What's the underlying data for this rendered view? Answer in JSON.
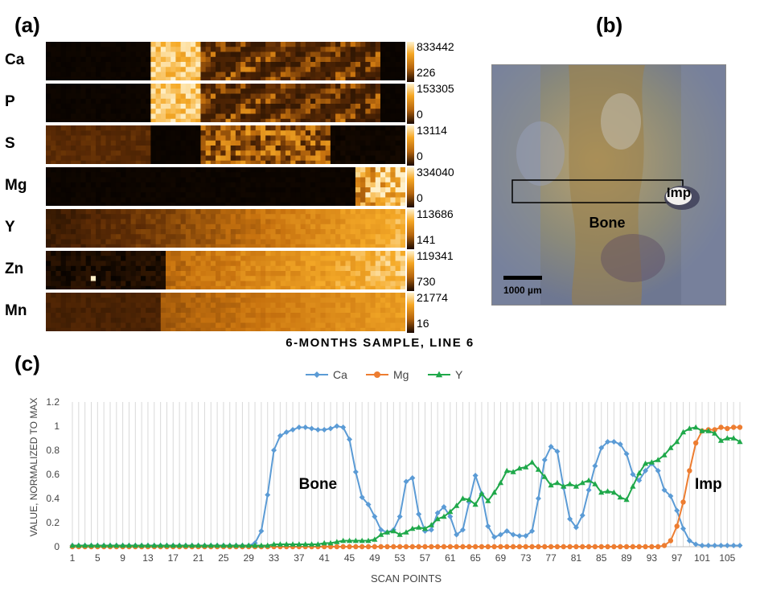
{
  "panels": {
    "a": "(a)",
    "b": "(b)",
    "c": "(c)"
  },
  "maps": [
    {
      "element": "Ca",
      "max": "833442",
      "min": "226",
      "profile": "ca"
    },
    {
      "element": "P",
      "max": "153305",
      "min": "0",
      "profile": "ca"
    },
    {
      "element": "S",
      "max": "13114",
      "min": "0",
      "profile": "s"
    },
    {
      "element": "Mg",
      "max": "334040",
      "min": "0",
      "profile": "mg"
    },
    {
      "element": "Y",
      "max": "113686",
      "min": "141",
      "profile": "y"
    },
    {
      "element": "Zn",
      "max": "119341",
      "min": "730",
      "profile": "zn"
    },
    {
      "element": "Mn",
      "max": "21774",
      "min": "16",
      "profile": "mn"
    }
  ],
  "photo": {
    "bone_label": "Bone",
    "imp_label": "Imp",
    "scalebar_label": "1000 µm"
  },
  "subtitle": "6-MONTHS SAMPLE, LINE 6",
  "chart_data": {
    "type": "line",
    "title": "",
    "xlabel": "SCAN POINTS",
    "ylabel": "VALUE, NORMALIZED TO MAX",
    "ylim": [
      0,
      1.2
    ],
    "yticks": [
      "0",
      "0.2",
      "0.4",
      "0.6",
      "0.8",
      "1",
      "1.2"
    ],
    "xticks": [
      "1",
      "5",
      "9",
      "13",
      "17",
      "21",
      "25",
      "29",
      "33",
      "37",
      "41",
      "45",
      "49",
      "53",
      "57",
      "61",
      "65",
      "69",
      "73",
      "77",
      "81",
      "85",
      "89",
      "93",
      "97",
      "101",
      "105"
    ],
    "legend_position": "top",
    "grid": "vertical",
    "annotations": [
      {
        "text": "Bone",
        "x": 40,
        "y": 0.48
      },
      {
        "text": "Imp",
        "x": 102,
        "y": 0.48
      }
    ],
    "x": [
      1,
      2,
      3,
      4,
      5,
      6,
      7,
      8,
      9,
      10,
      11,
      12,
      13,
      14,
      15,
      16,
      17,
      18,
      19,
      20,
      21,
      22,
      23,
      24,
      25,
      26,
      27,
      28,
      29,
      30,
      31,
      32,
      33,
      34,
      35,
      36,
      37,
      38,
      39,
      40,
      41,
      42,
      43,
      44,
      45,
      46,
      47,
      48,
      49,
      50,
      51,
      52,
      53,
      54,
      55,
      56,
      57,
      58,
      59,
      60,
      61,
      62,
      63,
      64,
      65,
      66,
      67,
      68,
      69,
      70,
      71,
      72,
      73,
      74,
      75,
      76,
      77,
      78,
      79,
      80,
      81,
      82,
      83,
      84,
      85,
      86,
      87,
      88,
      89,
      90,
      91,
      92,
      93,
      94,
      95,
      96,
      97,
      98,
      99,
      100,
      101,
      102,
      103,
      104,
      105,
      106,
      107
    ],
    "series": [
      {
        "name": "Ca",
        "color": "#5b9bd5",
        "marker": "diamond",
        "values": [
          0.01,
          0.01,
          0.01,
          0.01,
          0.01,
          0.01,
          0.01,
          0.01,
          0.01,
          0.01,
          0.01,
          0.01,
          0.01,
          0.01,
          0.01,
          0.01,
          0.01,
          0.01,
          0.01,
          0.01,
          0.01,
          0.01,
          0.01,
          0.01,
          0.01,
          0.01,
          0.01,
          0.01,
          0.01,
          0.03,
          0.13,
          0.43,
          0.8,
          0.92,
          0.95,
          0.97,
          0.99,
          0.99,
          0.98,
          0.97,
          0.97,
          0.98,
          1.0,
          0.99,
          0.89,
          0.62,
          0.41,
          0.35,
          0.25,
          0.14,
          0.12,
          0.14,
          0.25,
          0.54,
          0.57,
          0.27,
          0.13,
          0.14,
          0.28,
          0.33,
          0.25,
          0.1,
          0.14,
          0.37,
          0.59,
          0.44,
          0.17,
          0.08,
          0.1,
          0.13,
          0.1,
          0.09,
          0.09,
          0.13,
          0.4,
          0.72,
          0.83,
          0.79,
          0.49,
          0.23,
          0.16,
          0.26,
          0.47,
          0.67,
          0.82,
          0.87,
          0.87,
          0.85,
          0.77,
          0.6,
          0.55,
          0.63,
          0.69,
          0.63,
          0.47,
          0.42,
          0.3,
          0.15,
          0.05,
          0.02,
          0.01,
          0.01,
          0.01,
          0.01,
          0.01,
          0.01,
          0.01
        ]
      },
      {
        "name": "Mg",
        "color": "#ed7d31",
        "marker": "circle",
        "values": [
          0,
          0,
          0,
          0,
          0,
          0,
          0,
          0,
          0,
          0,
          0,
          0,
          0,
          0,
          0,
          0,
          0,
          0,
          0,
          0,
          0,
          0,
          0,
          0,
          0,
          0,
          0,
          0,
          0,
          0,
          0,
          0,
          0,
          0,
          0,
          0,
          0,
          0,
          0,
          0,
          0,
          0,
          0,
          0,
          0,
          0,
          0,
          0,
          0,
          0,
          0,
          0,
          0,
          0,
          0,
          0,
          0,
          0,
          0,
          0,
          0,
          0,
          0,
          0,
          0,
          0,
          0,
          0,
          0,
          0,
          0,
          0,
          0,
          0,
          0,
          0,
          0,
          0,
          0,
          0,
          0,
          0,
          0,
          0,
          0,
          0,
          0,
          0,
          0,
          0,
          0,
          0,
          0,
          0,
          0.01,
          0.05,
          0.17,
          0.37,
          0.63,
          0.86,
          0.96,
          0.97,
          0.97,
          0.99,
          0.98,
          0.99,
          0.99
        ]
      },
      {
        "name": "Y",
        "color": "#1fa84a",
        "marker": "triangle",
        "values": [
          0.01,
          0.01,
          0.01,
          0.01,
          0.01,
          0.01,
          0.01,
          0.01,
          0.01,
          0.01,
          0.01,
          0.01,
          0.01,
          0.01,
          0.01,
          0.01,
          0.01,
          0.01,
          0.01,
          0.01,
          0.01,
          0.01,
          0.01,
          0.01,
          0.01,
          0.01,
          0.01,
          0.01,
          0.01,
          0.01,
          0.01,
          0.01,
          0.02,
          0.02,
          0.02,
          0.02,
          0.02,
          0.02,
          0.02,
          0.02,
          0.03,
          0.03,
          0.04,
          0.05,
          0.05,
          0.05,
          0.05,
          0.05,
          0.06,
          0.1,
          0.12,
          0.13,
          0.1,
          0.12,
          0.15,
          0.16,
          0.15,
          0.18,
          0.23,
          0.25,
          0.29,
          0.34,
          0.4,
          0.39,
          0.35,
          0.44,
          0.38,
          0.45,
          0.53,
          0.63,
          0.62,
          0.65,
          0.66,
          0.7,
          0.64,
          0.58,
          0.51,
          0.53,
          0.5,
          0.52,
          0.5,
          0.53,
          0.55,
          0.52,
          0.45,
          0.46,
          0.45,
          0.41,
          0.39,
          0.5,
          0.61,
          0.69,
          0.7,
          0.72,
          0.76,
          0.82,
          0.87,
          0.95,
          0.98,
          0.99,
          0.96,
          0.96,
          0.94,
          0.88,
          0.9,
          0.9,
          0.87
        ]
      }
    ]
  }
}
